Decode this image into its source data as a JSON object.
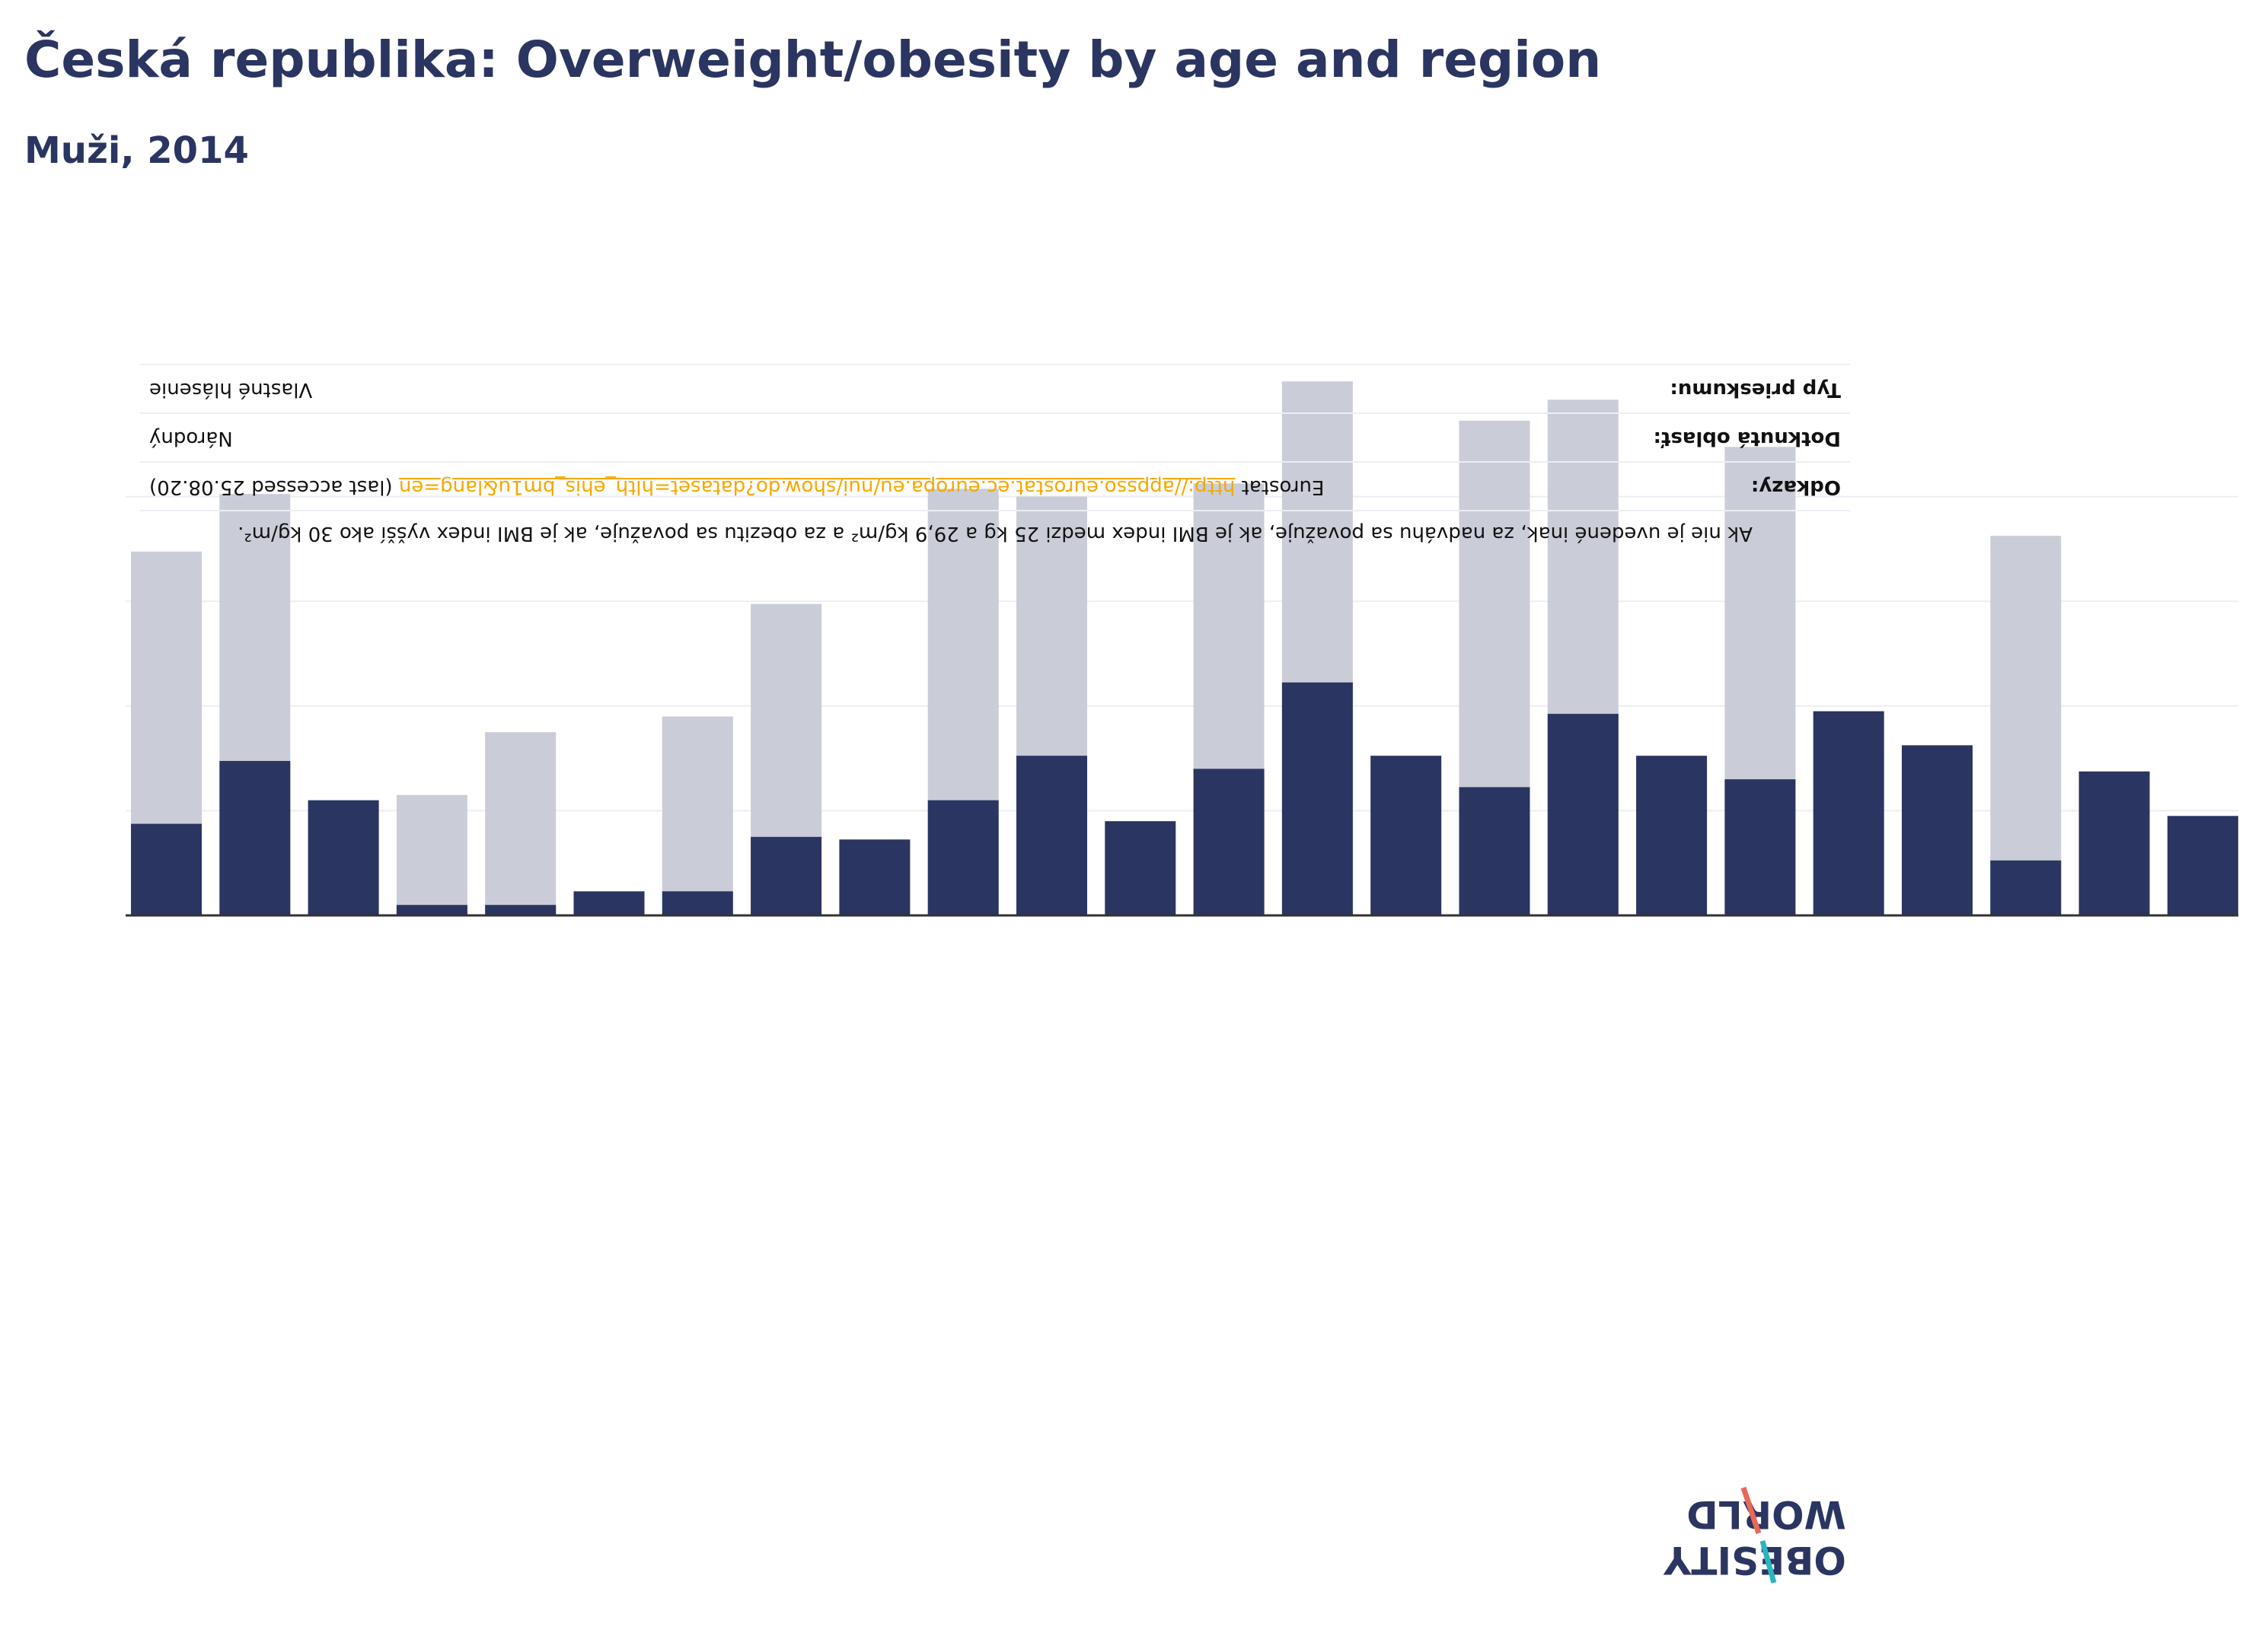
{
  "title": "Česká republika: Overweight/obesity by age and region",
  "subtitle": "Muži, 2014",
  "colors": {
    "obesity": "#2b3561",
    "overweight": "#cacdd8",
    "axis": "#333333",
    "grid": "#eceef3",
    "link": "#f5a800"
  },
  "info": {
    "note": "Ak nie je uvedené inak, za nadváhu sa považuje, ak je BMI index medzi 25 kg a 29,9 kg/m² a za obezitu sa považuje, ak je BMI index vyšší ako 30 kg/m².",
    "rows": [
      {
        "label": "Odkazy:",
        "value_prefix": "Eurostat",
        "link": "http://appsso.eurostat.ec.europa.eu/nui/show.do?dataset=hlth_ehis_bm1u&lang=en",
        "value_suffix": "(last accessed 25.08.20)"
      },
      {
        "label": "Dotknutá oblasť:",
        "value": "Národný"
      },
      {
        "label": "Typ prieskumu:",
        "value": "Vlastné hlásenie"
      }
    ]
  },
  "logo": {
    "line1": "OBESITY",
    "line2": "WORLD"
  },
  "chart_data": {
    "type": "bar",
    "stacked": false,
    "ylim": [
      0,
      100
    ],
    "grid": true,
    "series": [
      {
        "values": [
          17.5,
          29.5,
          22,
          2,
          2,
          4.6,
          4.6,
          15,
          14.5,
          22,
          30.5,
          18,
          28,
          44.5,
          30.5,
          24.5,
          38.5,
          30.5,
          26,
          39,
          32.5,
          10.5,
          27.5,
          19
        ]
      },
      {
        "values": [
          69.5,
          80.5,
          null,
          23,
          35,
          null,
          38,
          59.5,
          null,
          81.5,
          80,
          null,
          82.5,
          102,
          null,
          94.5,
          98.5,
          null,
          89.5,
          null,
          null,
          72.5,
          null,
          null
        ]
      }
    ]
  }
}
